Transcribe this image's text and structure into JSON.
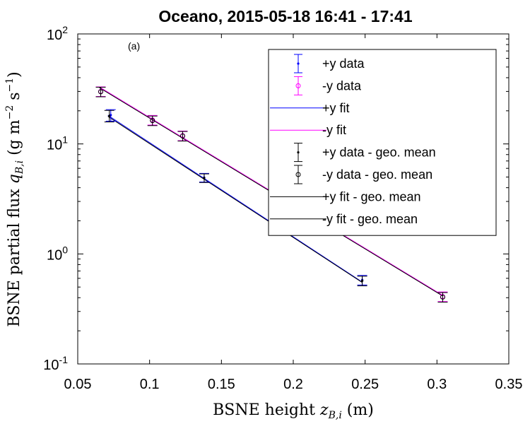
{
  "chart_data": {
    "type": "scatter",
    "title": "Oceano, 2015-05-18 16:41 - 17:41",
    "annotation": "(a)",
    "xlabel": "BSNE height z_B,i (m)",
    "ylabel": "BSNE partial flux q_B,i (g m^-2 s^-1)",
    "xlim": [
      0.05,
      0.35
    ],
    "ylim": [
      0.1,
      100
    ],
    "yscale": "log",
    "grid": false,
    "legend_position": "top-right",
    "xticks": [
      {
        "value": 0.05,
        "label": "0.05"
      },
      {
        "value": 0.1,
        "label": "0.1"
      },
      {
        "value": 0.15,
        "label": "0.15"
      },
      {
        "value": 0.2,
        "label": "0.2"
      },
      {
        "value": 0.25,
        "label": "0.25"
      },
      {
        "value": 0.3,
        "label": "0.3"
      },
      {
        "value": 0.35,
        "label": "0.35"
      }
    ],
    "yticks": [
      {
        "value": 0.1,
        "base": "10",
        "exp": "-1"
      },
      {
        "value": 1,
        "base": "10",
        "exp": "0"
      },
      {
        "value": 10,
        "base": "10",
        "exp": "1"
      },
      {
        "value": 100,
        "base": "10",
        "exp": "2"
      }
    ],
    "series": [
      {
        "name": "+y data",
        "kind": "errorbar",
        "marker": "dot",
        "color": "#0000ff",
        "x": [
          0.073,
          0.138,
          0.248
        ],
        "y": [
          18.3,
          4.95,
          0.58
        ],
        "err": [
          0.12,
          0.09,
          0.1
        ]
      },
      {
        "name": "-y data",
        "kind": "errorbar",
        "marker": "circle",
        "color": "#ff00ff",
        "x": [
          0.066,
          0.102,
          0.123,
          0.304
        ],
        "y": [
          30.0,
          16.5,
          11.9,
          0.41
        ],
        "err": [
          0.1,
          0.1,
          0.1,
          0.1
        ]
      },
      {
        "name": "+y fit",
        "kind": "line",
        "color": "#0000ff",
        "x": [
          0.071,
          0.248
        ],
        "y": [
          18.2,
          0.555
        ]
      },
      {
        "name": "-y fit",
        "kind": "line",
        "color": "#ff00ff",
        "x": [
          0.065,
          0.304
        ],
        "y": [
          33.0,
          0.42
        ]
      },
      {
        "name": "+y data - geo. mean",
        "kind": "errorbar",
        "marker": "dot",
        "color": "#000000",
        "x": [
          0.072,
          0.138,
          0.248
        ],
        "y": [
          18.0,
          4.9,
          0.57
        ],
        "err": [
          0.12,
          0.09,
          0.1
        ]
      },
      {
        "name": "-y data - geo. mean",
        "kind": "errorbar",
        "marker": "circle",
        "color": "#000000",
        "x": [
          0.066,
          0.102,
          0.123,
          0.304
        ],
        "y": [
          29.8,
          16.3,
          11.8,
          0.405
        ],
        "err": [
          0.1,
          0.1,
          0.1,
          0.1
        ]
      },
      {
        "name": "+y fit - geo. mean",
        "kind": "line",
        "color": "#000000",
        "x": [
          0.071,
          0.248
        ],
        "y": [
          17.8,
          0.55
        ]
      },
      {
        "name": "-y fit - geo. mean",
        "kind": "line",
        "color": "#000000",
        "x": [
          0.065,
          0.304
        ],
        "y": [
          32.5,
          0.415
        ]
      }
    ]
  }
}
